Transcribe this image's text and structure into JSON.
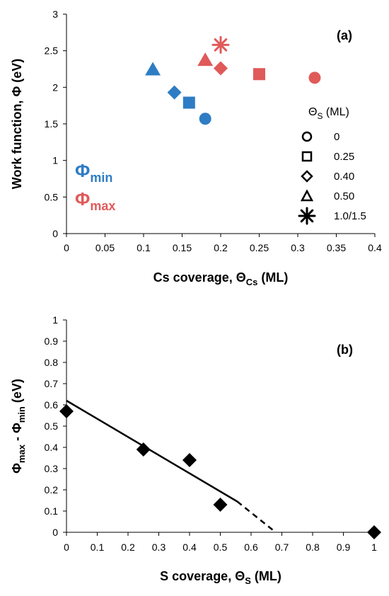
{
  "chart_data": [
    {
      "type": "scatter",
      "panel_label": "(a)",
      "xlabel": {
        "main": "Cs coverage, Θ",
        "sub": "Cs",
        "unit": " (ML)"
      },
      "ylabel": "Work function, Φ (eV)",
      "xlim": [
        0,
        0.4
      ],
      "ylim": [
        0,
        3
      ],
      "x_ticks": [
        "0",
        "0.05",
        "0.1",
        "0.15",
        "0.2",
        "0.25",
        "0.3",
        "0.35",
        "0.4"
      ],
      "y_ticks": [
        "0",
        "0.5",
        "1",
        "1.5",
        "2",
        "2.5",
        "3"
      ],
      "grid": false,
      "series": [
        {
          "name": "Φmin",
          "color": "#2e7dc4",
          "points": [
            {
              "x": 0.18,
              "y": 1.57,
              "marker": "circle"
            },
            {
              "x": 0.159,
              "y": 1.79,
              "marker": "square"
            },
            {
              "x": 0.14,
              "y": 1.93,
              "marker": "diamond"
            },
            {
              "x": 0.112,
              "y": 2.24,
              "marker": "triangle"
            }
          ]
        },
        {
          "name": "Φmax",
          "color": "#e05a5a",
          "points": [
            {
              "x": 0.322,
              "y": 2.13,
              "marker": "circle"
            },
            {
              "x": 0.25,
              "y": 2.18,
              "marker": "square"
            },
            {
              "x": 0.2,
              "y": 2.26,
              "marker": "diamond"
            },
            {
              "x": 0.18,
              "y": 2.37,
              "marker": "triangle"
            },
            {
              "x": 0.2,
              "y": 2.58,
              "marker": "asterisk"
            }
          ]
        }
      ],
      "series_labels": [
        {
          "main": "Φ",
          "sub": "min",
          "color": "#2e7dc4"
        },
        {
          "main": "Φ",
          "sub": "max",
          "color": "#e05a5a"
        }
      ],
      "legend": {
        "title": {
          "main": "Θ",
          "sub": "S",
          "unit": " (ML)"
        },
        "position": "right",
        "entries": [
          {
            "marker": "circle",
            "label": "0"
          },
          {
            "marker": "square",
            "label": "0.25"
          },
          {
            "marker": "diamond",
            "label": "0.40"
          },
          {
            "marker": "triangle",
            "label": "0.50"
          },
          {
            "marker": "asterisk",
            "label": "1.0/1.5"
          }
        ]
      }
    },
    {
      "type": "scatter",
      "panel_label": "(b)",
      "xlabel": {
        "main": "S coverage, Θ",
        "sub": "S",
        "unit": "  (ML)"
      },
      "ylabel": {
        "a": "Φ",
        "a_sub": "max",
        "mid": " - Φ",
        "b_sub": "min",
        "unit": " (eV)"
      },
      "xlim": [
        0,
        1
      ],
      "ylim": [
        0,
        1
      ],
      "x_ticks": [
        "0",
        "0.1",
        "0.2",
        "0.3",
        "0.4",
        "0.5",
        "0.6",
        "0.7",
        "0.8",
        "0.9",
        "1"
      ],
      "y_ticks": [
        "0",
        "0.1",
        "0.2",
        "0.3",
        "0.4",
        "0.5",
        "0.6",
        "0.7",
        "0.8",
        "0.9",
        "1"
      ],
      "grid": false,
      "points": [
        {
          "x": 0,
          "y": 0.57
        },
        {
          "x": 0.25,
          "y": 0.39
        },
        {
          "x": 0.4,
          "y": 0.34
        },
        {
          "x": 0.5,
          "y": 0.13
        },
        {
          "x": 1,
          "y": 0
        }
      ],
      "fit_line": {
        "solid": [
          [
            0,
            0.62
          ],
          [
            0.555,
            0.145
          ]
        ],
        "dashed": [
          [
            0.555,
            0.145
          ],
          [
            0.68,
            0
          ]
        ]
      },
      "marker_color": "#000000"
    }
  ]
}
